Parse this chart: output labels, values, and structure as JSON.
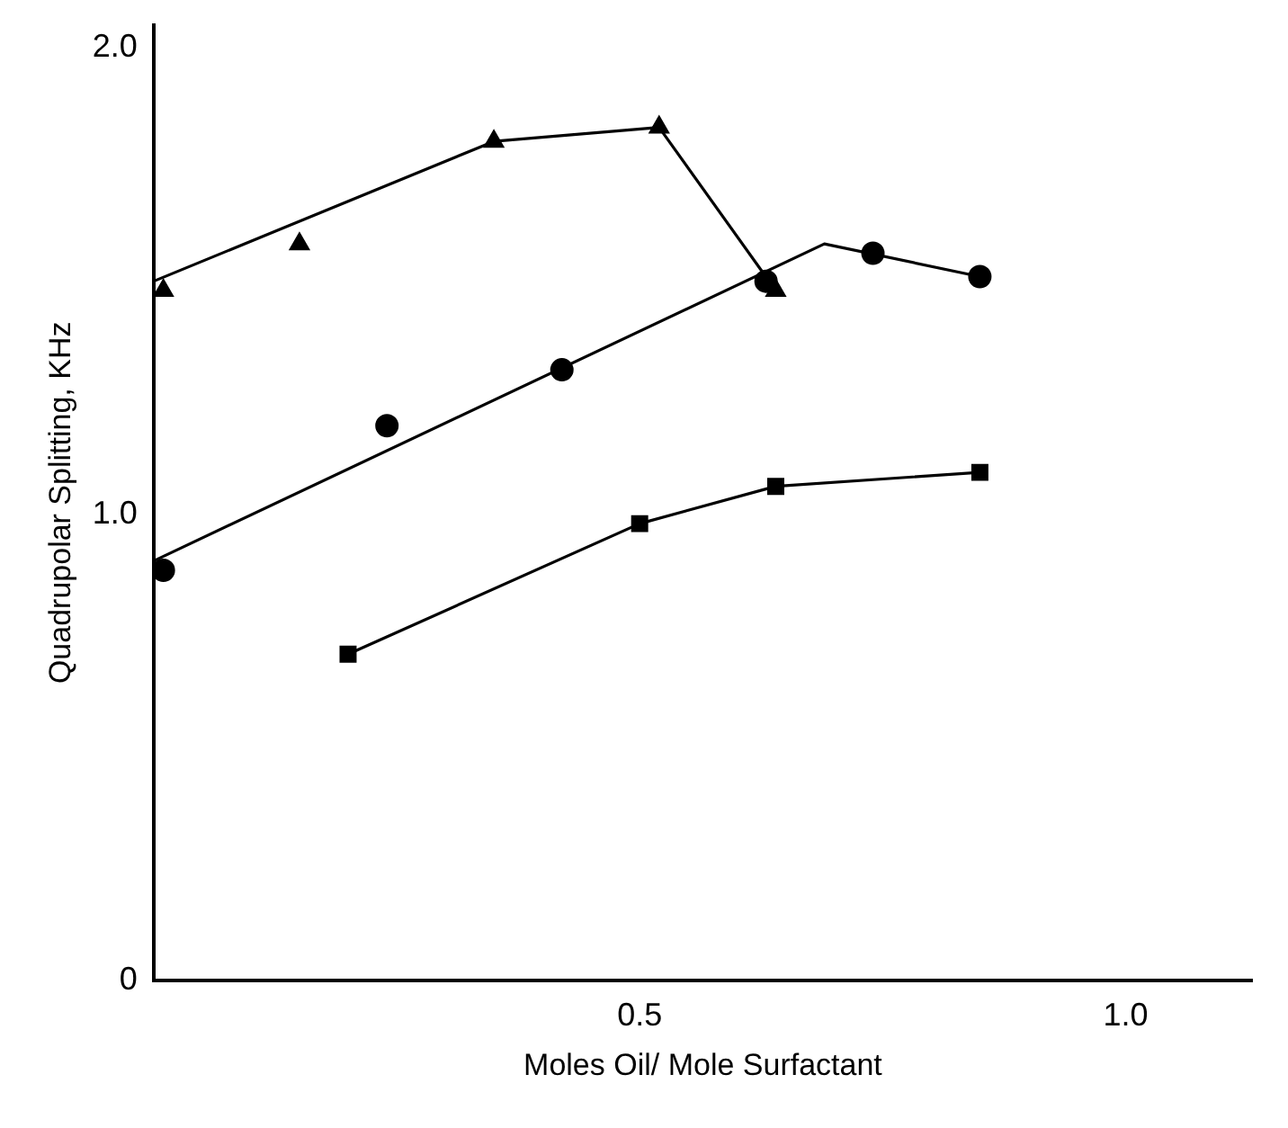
{
  "chart_data": {
    "type": "scatter",
    "xlabel": "Moles Oil/ Mole Surfactant",
    "ylabel": "Quadrupolar Splitting, KHz",
    "xlim": [
      0,
      1.13
    ],
    "ylim": [
      0,
      2.05
    ],
    "xticks": [
      0.5,
      {
        "value": 1.0,
        "label": "1.0"
      }
    ],
    "yticks": [
      0,
      {
        "value": 1.0,
        "label": "1.0"
      },
      {
        "value": 2.0,
        "label": "2.0"
      }
    ],
    "grid": false,
    "legend": false,
    "series": [
      {
        "marker": "triangle",
        "color": "#000000",
        "x": [
          0.01,
          0.15,
          0.35,
          0.52,
          0.64
        ],
        "values": [
          1.48,
          1.58,
          1.8,
          1.83,
          1.48
        ]
      },
      {
        "type": "line",
        "marker": "none",
        "color": "#000000",
        "x": [
          0,
          0.35,
          0.52,
          0.64
        ],
        "values": [
          1.5,
          1.8,
          1.83,
          1.48
        ]
      },
      {
        "marker": "circle",
        "color": "#000000",
        "x": [
          0.01,
          0.24,
          0.42,
          0.63,
          0.74,
          0.85
        ],
        "values": [
          0.88,
          1.19,
          1.31,
          1.5,
          1.56,
          1.51
        ]
      },
      {
        "type": "line",
        "marker": "none",
        "color": "#000000",
        "x": [
          0,
          0.69,
          0.85
        ],
        "values": [
          0.9,
          1.58,
          1.51
        ]
      },
      {
        "marker": "square",
        "color": "#000000",
        "x": [
          0.2,
          0.5,
          0.64,
          0.85
        ],
        "values": [
          0.7,
          0.98,
          1.06,
          1.09
        ]
      },
      {
        "type": "line",
        "marker": "none",
        "color": "#000000",
        "x": [
          0.2,
          0.5,
          0.64,
          0.85
        ],
        "values": [
          0.7,
          0.98,
          1.06,
          1.09
        ]
      }
    ]
  }
}
